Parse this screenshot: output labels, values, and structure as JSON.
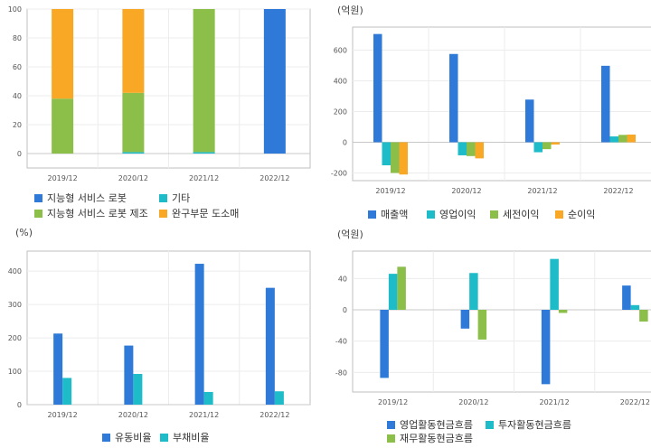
{
  "chart_data": [
    {
      "type": "bar",
      "stacked": true,
      "unit_label": "",
      "categories": [
        "2019/12",
        "2020/12",
        "2021/12",
        "2022/12"
      ],
      "ylim": [
        -10,
        100
      ],
      "yticks": [
        "0",
        "20",
        "40",
        "60",
        "80",
        "100"
      ],
      "grid": true,
      "legend_position": "bottom",
      "series": [
        {
          "name": "지능형 서비스 로봇",
          "color": "#2f7ad8",
          "values": [
            0,
            0,
            0,
            100
          ]
        },
        {
          "name": "기타",
          "color": "#1dbcc8",
          "values": [
            0,
            1,
            1,
            0
          ]
        },
        {
          "name": "지능형 서비스 로봇 제조",
          "color": "#8cbf4a",
          "values": [
            38,
            41,
            99,
            0
          ]
        },
        {
          "name": "완구부문 도소매",
          "color": "#f9a825",
          "values": [
            62,
            58,
            0,
            0
          ]
        }
      ]
    },
    {
      "type": "bar",
      "unit_label": "(억원)",
      "categories": [
        "2019/12",
        "2020/12",
        "2021/12",
        "2022/12"
      ],
      "ylim": [
        -250,
        750
      ],
      "yticks": [
        "-200",
        "0",
        "200",
        "400",
        "600"
      ],
      "grid": true,
      "legend_position": "bottom",
      "series": [
        {
          "name": "매출액",
          "color": "#2f7ad8",
          "values": [
            705,
            575,
            278,
            498
          ]
        },
        {
          "name": "영업이익",
          "color": "#1dbcc8",
          "values": [
            -150,
            -85,
            -65,
            38
          ]
        },
        {
          "name": "세전이익",
          "color": "#8cbf4a",
          "values": [
            -200,
            -90,
            -45,
            48
          ]
        },
        {
          "name": "순이익",
          "color": "#f9a825",
          "values": [
            -210,
            -105,
            -15,
            50
          ]
        }
      ]
    },
    {
      "type": "bar",
      "unit_label": "(%)",
      "categories": [
        "2019/12",
        "2020/12",
        "2021/12",
        "2022/12"
      ],
      "ylim": [
        0,
        460
      ],
      "yticks": [
        "0",
        "100",
        "200",
        "300",
        "400"
      ],
      "grid": true,
      "legend_position": "bottom",
      "series": [
        {
          "name": "유동비율",
          "color": "#2f7ad8",
          "values": [
            213,
            177,
            422,
            350
          ]
        },
        {
          "name": "부채비율",
          "color": "#1dbcc8",
          "values": [
            80,
            92,
            38,
            40
          ]
        }
      ]
    },
    {
      "type": "bar",
      "unit_label": "(억원)",
      "categories": [
        "2019/12",
        "2020/12",
        "2021/12",
        "2022/12"
      ],
      "ylim": [
        -105,
        75
      ],
      "yticks": [
        "-80",
        "-40",
        "0",
        "40"
      ],
      "grid": true,
      "legend_position": "bottom",
      "series": [
        {
          "name": "영업활동현금흐름",
          "color": "#2f7ad8",
          "values": [
            -87,
            -24,
            -95,
            31
          ]
        },
        {
          "name": "투자활동현금흐름",
          "color": "#1dbcc8",
          "values": [
            46,
            47,
            65,
            6
          ]
        },
        {
          "name": "재무활동현금흐름",
          "color": "#8cbf4a",
          "values": [
            55,
            -38,
            -4,
            -15
          ]
        }
      ]
    }
  ]
}
